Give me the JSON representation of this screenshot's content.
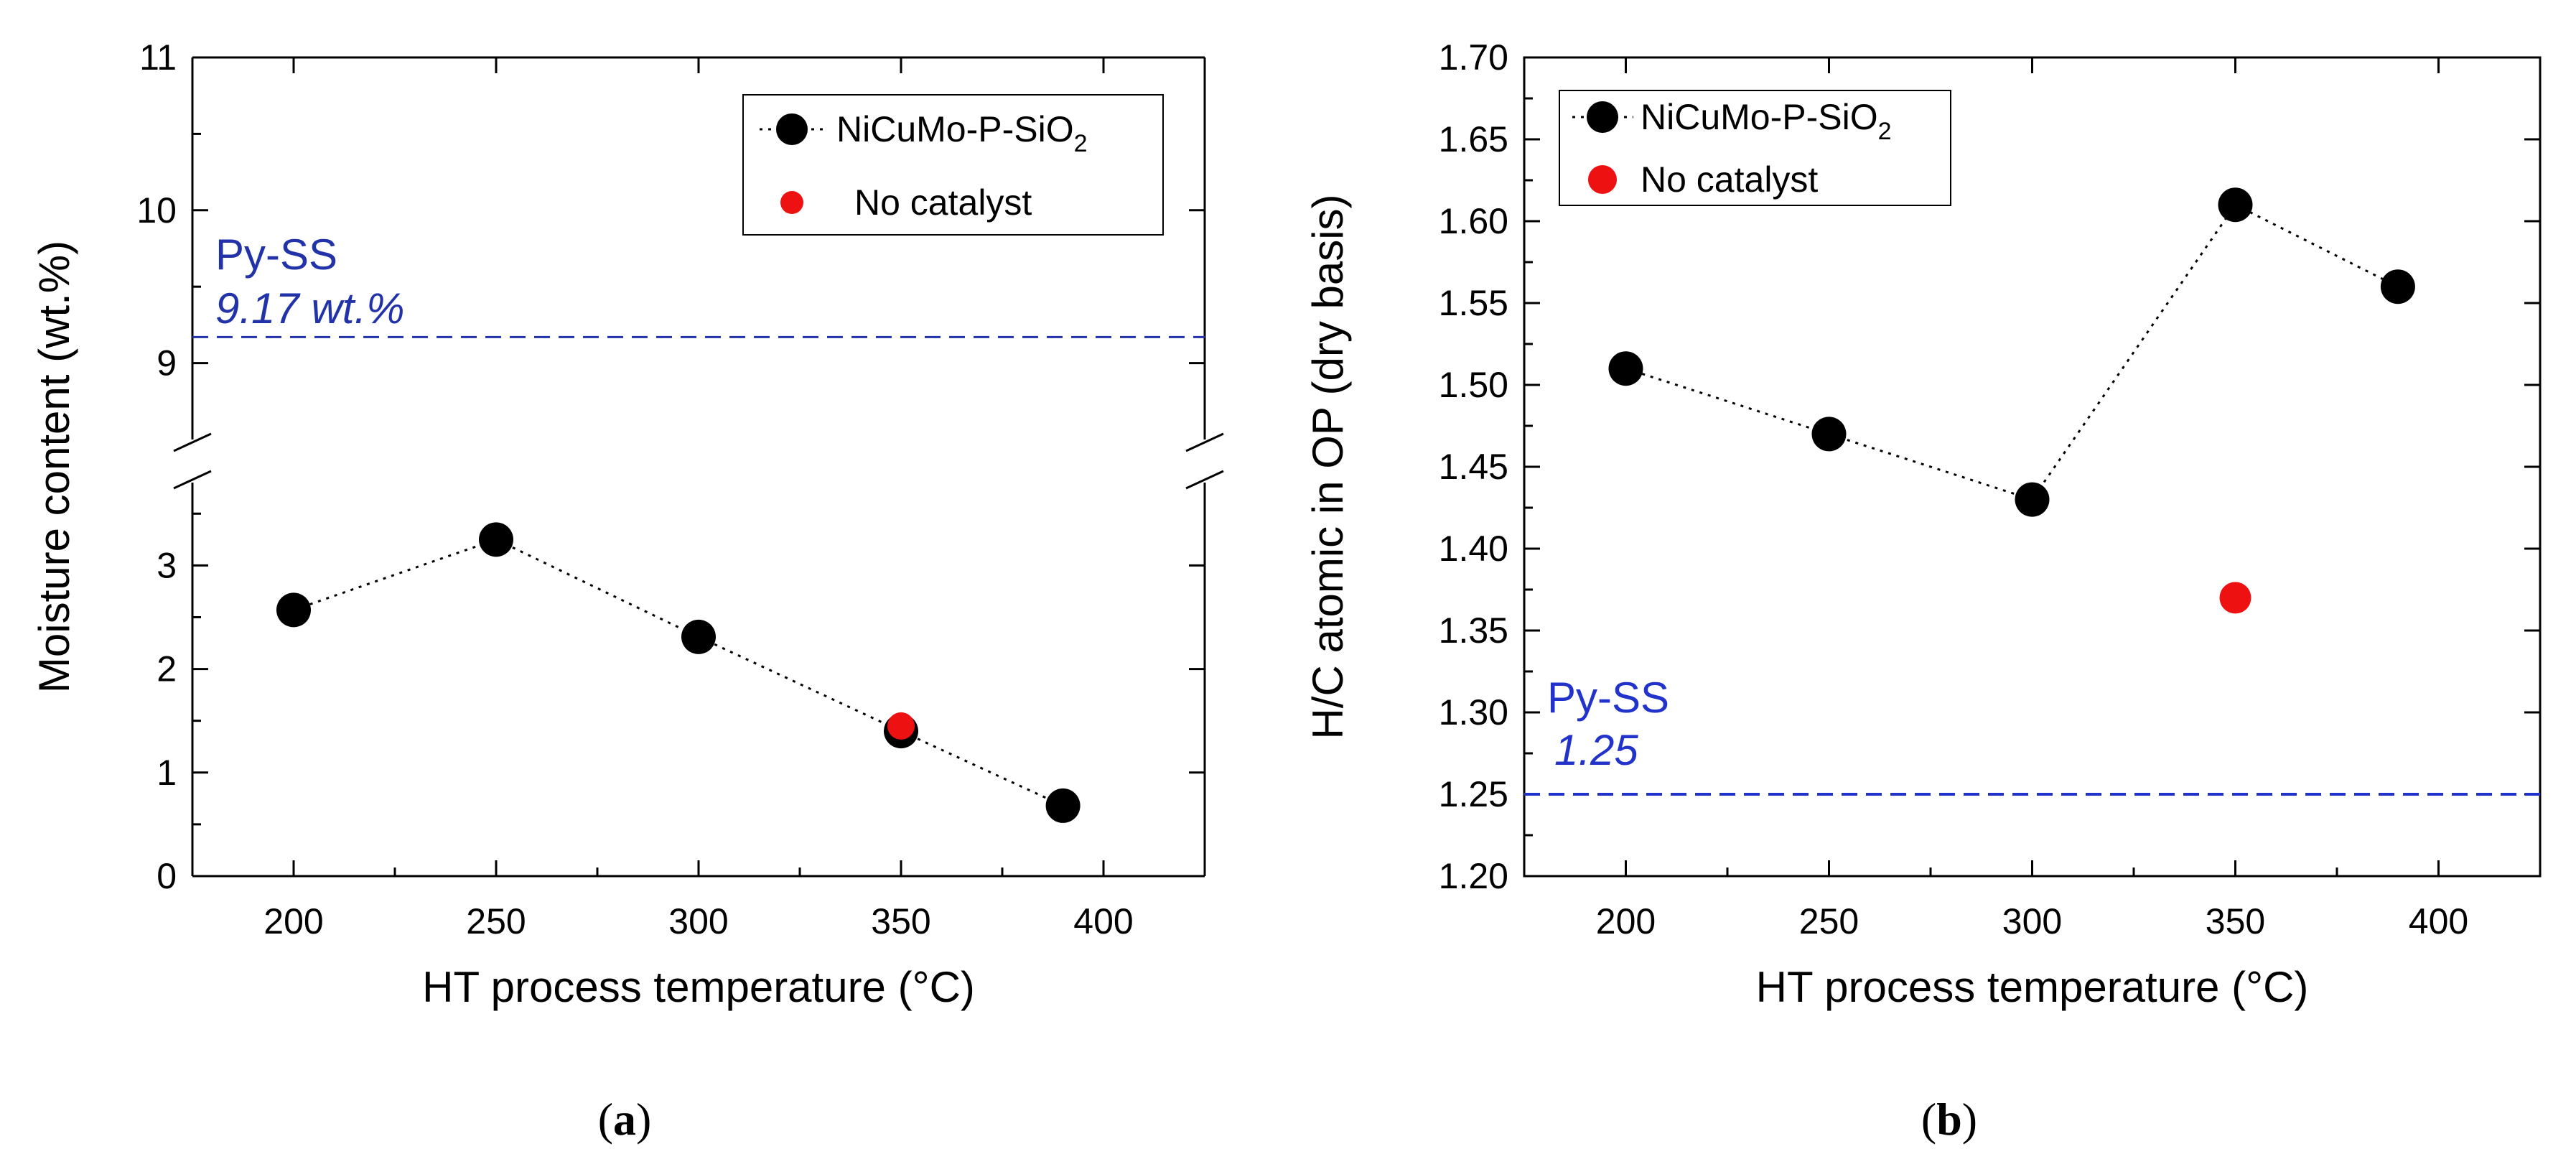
{
  "chart_data": [
    {
      "type": "scatter",
      "panel_label": "a",
      "xlabel": "HT process temperature (°C)",
      "ylabel": "Moisture content (wt.%)",
      "xlim": [
        175,
        425
      ],
      "x_ticks": [
        200,
        250,
        300,
        350,
        400
      ],
      "y_broken": true,
      "ylim_lower": [
        0,
        3.8
      ],
      "ylim_upper": [
        8.5,
        11
      ],
      "y_ticks_lower": [
        0,
        1,
        2,
        3
      ],
      "y_ticks_upper": [
        9,
        10,
        11
      ],
      "series": [
        {
          "name": "NiCuMo-P-SiO",
          "name_sub": "2",
          "color": "#000000",
          "line": "dotted",
          "x": [
            200,
            250,
            300,
            350,
            390
          ],
          "y": [
            2.57,
            3.25,
            2.31,
            1.4,
            0.68
          ]
        },
        {
          "name": "No catalyst",
          "color": "#ee1111",
          "line": "none",
          "x": [
            350
          ],
          "y": [
            1.45
          ]
        }
      ],
      "reference": {
        "label": "Py-SS",
        "value_label": "9.17 wt.%",
        "value": 9.17,
        "color": "#2233aa"
      }
    },
    {
      "type": "scatter",
      "panel_label": "b",
      "xlabel": "HT process temperature (°C)",
      "ylabel": "H/C atomic in OP (dry basis)",
      "xlim": [
        175,
        425
      ],
      "x_ticks": [
        200,
        250,
        300,
        350,
        400
      ],
      "ylim": [
        1.2,
        1.7
      ],
      "y_ticks": [
        "1.20",
        "1.25",
        "1.30",
        "1.35",
        "1.40",
        "1.45",
        "1.50",
        "1.55",
        "1.60",
        "1.65",
        "1.70"
      ],
      "series": [
        {
          "name": "NiCuMo-P-SiO",
          "name_sub": "2",
          "color": "#000000",
          "line": "dotted",
          "x": [
            200,
            250,
            300,
            350,
            390
          ],
          "y": [
            1.51,
            1.47,
            1.43,
            1.61,
            1.56
          ]
        },
        {
          "name": "No catalyst",
          "color": "#ee1111",
          "line": "none",
          "x": [
            350
          ],
          "y": [
            1.37
          ]
        }
      ],
      "reference": {
        "label": "Py-SS",
        "value_label": "1.25",
        "value": 1.25,
        "color": "#2233cc"
      }
    }
  ]
}
